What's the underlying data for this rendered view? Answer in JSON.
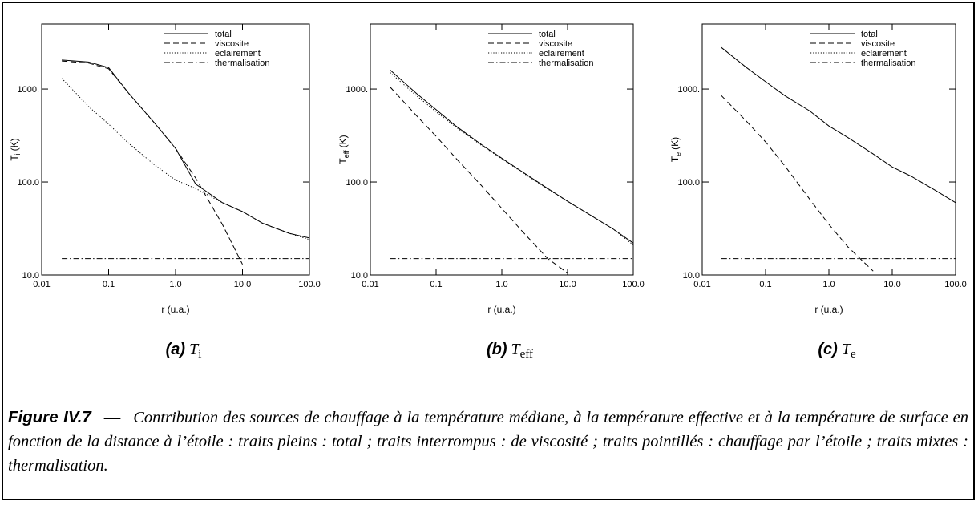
{
  "chart_data": [
    {
      "type": "line",
      "xscale": "log",
      "yscale": "log",
      "ylabel": {
        "symbol": "T",
        "sub": "i",
        "unit": "(K)"
      },
      "xlabel": "r (u.a.)",
      "xlim": [
        0.01,
        100
      ],
      "ylim": [
        10,
        5000
      ],
      "xticks": [
        0.01,
        0.1,
        {
          "value": 1,
          "label": "1.0"
        },
        {
          "value": 10,
          "label": "10.0"
        },
        {
          "value": 100,
          "label": "100.0"
        }
      ],
      "yticks": [
        {
          "value": 10,
          "label": "10.0"
        },
        {
          "value": 100,
          "label": "100.0"
        },
        {
          "value": 1000,
          "label": "1000."
        }
      ],
      "legend": "upper right",
      "x": [
        0.02,
        0.05,
        0.1,
        0.2,
        0.5,
        1,
        2,
        5,
        10,
        20,
        50,
        100
      ],
      "series": [
        {
          "name": "total",
          "color": "#000000",
          "dash": "solid",
          "values": [
            2050,
            1950,
            1700,
            900,
            420,
            230,
            95,
            60,
            48,
            36,
            28,
            25
          ]
        },
        {
          "name": "viscosite",
          "color": "#000000",
          "dash": "dashed",
          "values": [
            2000,
            1900,
            1650,
            900,
            420,
            230,
            110,
            35,
            13,
            null,
            null,
            null
          ]
        },
        {
          "name": "eclairement",
          "color": "#000000",
          "dash": "dotted",
          "values": [
            1300,
            650,
            420,
            260,
            150,
            105,
            85,
            60,
            48,
            36,
            28,
            24
          ]
        },
        {
          "name": "thermalisation",
          "color": "#000000",
          "dash": "dashdot",
          "values": [
            15,
            15,
            15,
            15,
            15,
            15,
            15,
            15,
            15,
            15,
            15,
            15
          ]
        }
      ],
      "subcaption": {
        "label": "(a)",
        "symbol": "T",
        "sub": "i"
      }
    },
    {
      "type": "line",
      "xscale": "log",
      "yscale": "log",
      "ylabel": {
        "symbol": "T",
        "sub": "eff",
        "unit": "(K)"
      },
      "xlabel": "r (u.a.)",
      "xlim": [
        0.01,
        100
      ],
      "ylim": [
        10,
        5000
      ],
      "xticks": [
        0.01,
        0.1,
        {
          "value": 1,
          "label": "1.0"
        },
        {
          "value": 10,
          "label": "10.0"
        },
        {
          "value": 100,
          "label": "100.0"
        }
      ],
      "yticks": [
        {
          "value": 10,
          "label": "10.0"
        },
        {
          "value": 100,
          "label": "100.0"
        },
        {
          "value": 1000,
          "label": "1000."
        }
      ],
      "legend": "upper right",
      "x": [
        0.02,
        0.05,
        0.1,
        0.2,
        0.5,
        1,
        2,
        5,
        10,
        20,
        50,
        100
      ],
      "series": [
        {
          "name": "total",
          "color": "#000000",
          "dash": "solid",
          "values": [
            1600,
            900,
            600,
            400,
            250,
            180,
            130,
            85,
            62,
            46,
            31,
            22
          ]
        },
        {
          "name": "viscosite",
          "color": "#000000",
          "dash": "dashed",
          "values": [
            1050,
            520,
            310,
            180,
            90,
            52,
            30,
            15,
            10.5,
            null,
            null,
            null
          ]
        },
        {
          "name": "eclairement",
          "color": "#000000",
          "dash": "dotted",
          "values": [
            1500,
            850,
            570,
            390,
            245,
            178,
            128,
            84,
            62,
            46,
            31,
            21
          ]
        },
        {
          "name": "thermalisation",
          "color": "#000000",
          "dash": "dashdot",
          "values": [
            15,
            15,
            15,
            15,
            15,
            15,
            15,
            15,
            15,
            15,
            15,
            15
          ]
        }
      ],
      "subcaption": {
        "label": "(b)",
        "symbol": "T",
        "sub": "eff"
      }
    },
    {
      "type": "line",
      "xscale": "log",
      "yscale": "log",
      "ylabel": {
        "symbol": "T",
        "sub": "e",
        "unit": "(K)"
      },
      "xlabel": "r (u.a.)",
      "xlim": [
        0.01,
        100
      ],
      "ylim": [
        10,
        5000
      ],
      "xticks": [
        0.01,
        0.1,
        {
          "value": 1,
          "label": "1.0"
        },
        {
          "value": 10,
          "label": "10.0"
        },
        {
          "value": 100,
          "label": "100.0"
        }
      ],
      "yticks": [
        {
          "value": 10,
          "label": "10.0"
        },
        {
          "value": 100,
          "label": "100.0"
        },
        {
          "value": 1000,
          "label": "1000."
        }
      ],
      "legend": "upper right",
      "x": [
        0.02,
        0.05,
        0.1,
        0.2,
        0.5,
        1,
        2,
        5,
        10,
        20,
        50,
        100
      ],
      "series": [
        {
          "name": "total",
          "color": "#000000",
          "dash": "solid",
          "values": [
            2800,
            1700,
            1200,
            850,
            580,
            400,
            300,
            200,
            145,
            115,
            80,
            60
          ]
        },
        {
          "name": "viscosite",
          "color": "#000000",
          "dash": "dashed",
          "values": [
            850,
            450,
            270,
            150,
            65,
            35,
            20,
            11,
            null,
            null,
            null,
            null
          ]
        },
        {
          "name": "eclairement",
          "color": "#000000",
          "dash": "dotted",
          "values": [
            null,
            null,
            null,
            null,
            null,
            null,
            null,
            null,
            null,
            null,
            null,
            null
          ]
        },
        {
          "name": "thermalisation",
          "color": "#000000",
          "dash": "dashdot",
          "values": [
            15,
            15,
            15,
            15,
            15,
            15,
            15,
            15,
            15,
            15,
            15,
            15
          ]
        }
      ],
      "subcaption": {
        "label": "(c)",
        "symbol": "T",
        "sub": "e"
      }
    }
  ],
  "caption": {
    "label": "Figure IV.7",
    "dash": "—",
    "text": "Contribution des sources de chauffage à la température médiane, à la température effective et à la température de surface en fonction de la distance à l’étoile : traits pleins : total ; traits interrompus : de viscosité ; traits pointillés : chauffage par l’étoile ; traits mixtes : thermalisation."
  }
}
